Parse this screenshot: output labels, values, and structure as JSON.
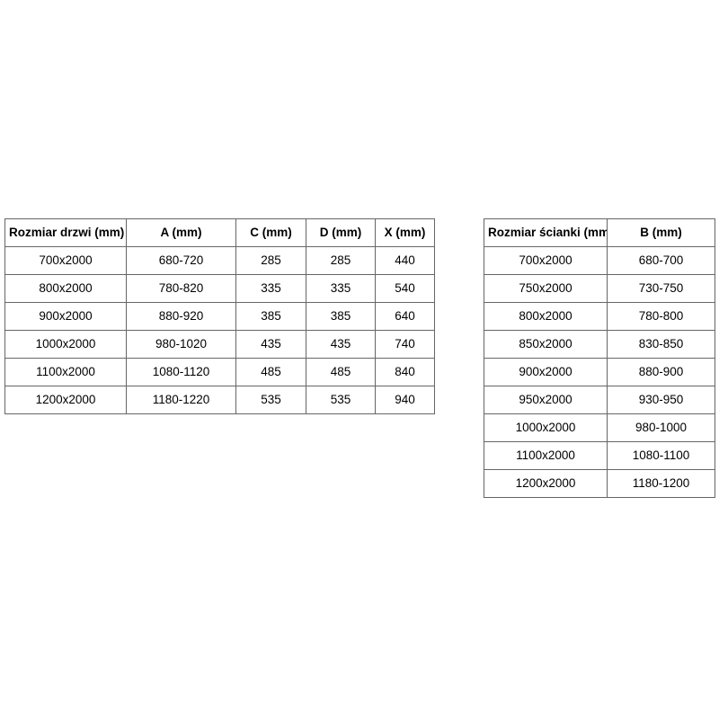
{
  "door_table": {
    "headers": [
      "Rozmiar drzwi (mm)",
      "A (mm)",
      "C (mm)",
      "D (mm)",
      "X (mm)"
    ],
    "rows": [
      [
        "700x2000",
        "680-720",
        "285",
        "285",
        "440"
      ],
      [
        "800x2000",
        "780-820",
        "335",
        "335",
        "540"
      ],
      [
        "900x2000",
        "880-920",
        "385",
        "385",
        "640"
      ],
      [
        "1000x2000",
        "980-1020",
        "435",
        "435",
        "740"
      ],
      [
        "1100x2000",
        "1080-1120",
        "485",
        "485",
        "840"
      ],
      [
        "1200x2000",
        "1180-1220",
        "535",
        "535",
        "940"
      ]
    ]
  },
  "wall_table": {
    "headers": [
      "Rozmiar ścianki (mm)",
      "B (mm)"
    ],
    "rows": [
      [
        "700x2000",
        "680-700"
      ],
      [
        "750x2000",
        "730-750"
      ],
      [
        "800x2000",
        "780-800"
      ],
      [
        "850x2000",
        "830-850"
      ],
      [
        "900x2000",
        "880-900"
      ],
      [
        "950x2000",
        "930-950"
      ],
      [
        "1000x2000",
        "980-1000"
      ],
      [
        "1100x2000",
        "1080-1100"
      ],
      [
        "1200x2000",
        "1180-1200"
      ]
    ]
  },
  "colors": {
    "background": "#ffffff",
    "border": "#666666",
    "text": "#000000"
  }
}
